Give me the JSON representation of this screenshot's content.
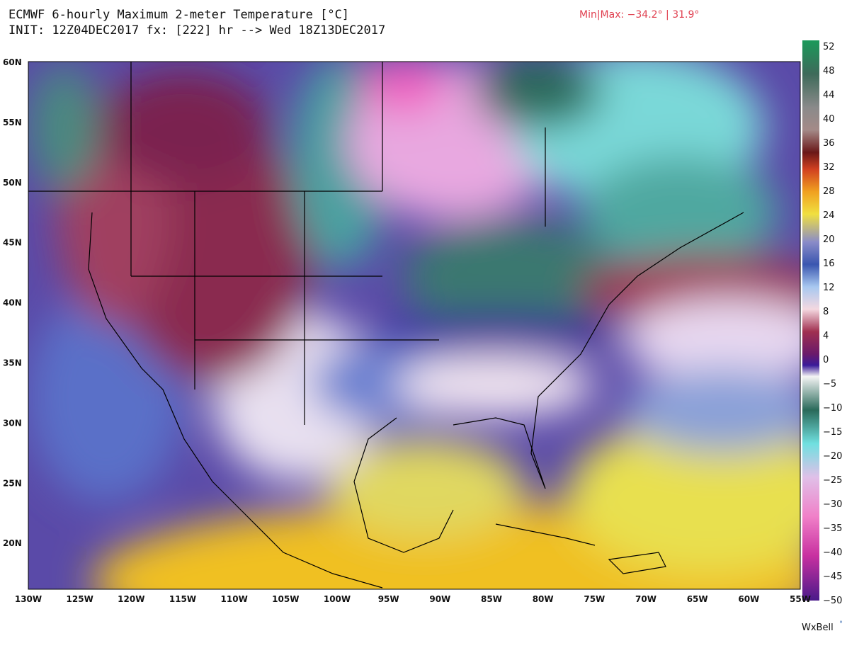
{
  "header": {
    "title": "ECMWF 6-hourly Maximum 2-meter Temperature [°C]",
    "init": "INIT: 12Z04DEC2017 fx: [222] hr --> Wed 18Z13DEC2017",
    "minmax": "Min|Max: −34.2° | 31.9°"
  },
  "axes": {
    "lat_labels": [
      "60N",
      "55N",
      "50N",
      "45N",
      "40N",
      "35N",
      "30N",
      "25N",
      "20N"
    ],
    "lon_labels": [
      "130W",
      "125W",
      "120W",
      "115W",
      "110W",
      "105W",
      "100W",
      "95W",
      "90W",
      "85W",
      "80W",
      "75W",
      "70W",
      "65W",
      "60W",
      "55W"
    ]
  },
  "colorbar": {
    "labels": [
      "52",
      "48",
      "44",
      "40",
      "36",
      "32",
      "28",
      "24",
      "20",
      "16",
      "12",
      "8",
      "4",
      "0",
      "−5",
      "−10",
      "−15",
      "−20",
      "−25",
      "−30",
      "−35",
      "−40",
      "−45",
      "−50"
    ]
  },
  "credit": "WxBell"
}
